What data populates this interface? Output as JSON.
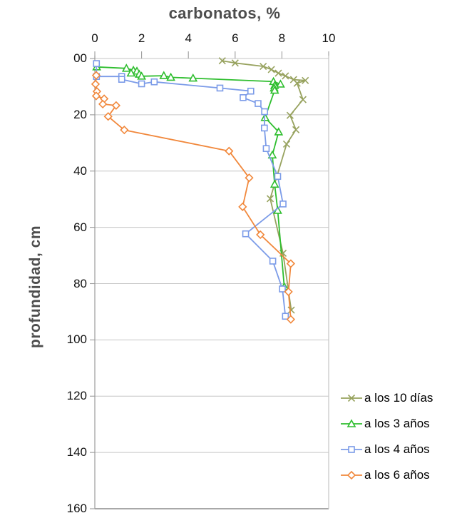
{
  "title": "carbonatos, %",
  "axes": {
    "x": {
      "tick_labels": [
        "0",
        "2",
        "4",
        "6",
        "8",
        "10"
      ],
      "tick_values": [
        0,
        2,
        4,
        6,
        8,
        10
      ]
    },
    "y": {
      "tick_labels": [
        "00",
        "20",
        "40",
        "60",
        "80",
        "100",
        "120",
        "140",
        "160"
      ],
      "tick_values": [
        0,
        20,
        40,
        60,
        80,
        100,
        120,
        140,
        160
      ]
    }
  },
  "chart_data": {
    "type": "line",
    "title": "carbonatos, %",
    "xlabel": "carbonatos, %",
    "ylabel": "profundidad, cm",
    "xlim": [
      0,
      10
    ],
    "ylim": [
      0,
      160
    ],
    "y_inverted": true,
    "grid": "horizontal",
    "legend_position": "right-bottom",
    "series": [
      {
        "name": "a los 10 días",
        "marker": "x",
        "color": "#97a25e",
        "points": [
          [
            5.45,
            0.8
          ],
          [
            6.0,
            1.6
          ],
          [
            7.2,
            2.8
          ],
          [
            7.55,
            3.9
          ],
          [
            7.85,
            5.2
          ],
          [
            8.15,
            6.2
          ],
          [
            8.5,
            7.5
          ],
          [
            9.0,
            7.8
          ],
          [
            8.65,
            8.8
          ],
          [
            8.9,
            14.6
          ],
          [
            8.35,
            20.2
          ],
          [
            8.6,
            25.3
          ],
          [
            8.2,
            30.4
          ],
          [
            7.5,
            49.8
          ],
          [
            8.05,
            69.2
          ],
          [
            8.4,
            89.4
          ]
        ]
      },
      {
        "name": "a los 3 años",
        "marker": "triangle",
        "color": "#2fbe2f",
        "points": [
          [
            0.08,
            3.0
          ],
          [
            1.35,
            3.5
          ],
          [
            1.65,
            4.2
          ],
          [
            1.8,
            4.5
          ],
          [
            1.55,
            5.2
          ],
          [
            1.9,
            5.6
          ],
          [
            2.0,
            6.3
          ],
          [
            2.95,
            6.1
          ],
          [
            3.25,
            6.7
          ],
          [
            4.2,
            7.0
          ],
          [
            7.64,
            8.2
          ],
          [
            7.94,
            9.1
          ],
          [
            7.69,
            9.6
          ],
          [
            7.67,
            10.5
          ],
          [
            7.69,
            11.3
          ],
          [
            7.28,
            21.0
          ],
          [
            7.86,
            26.1
          ],
          [
            7.59,
            34.3
          ],
          [
            7.69,
            44.7
          ],
          [
            7.82,
            54.0
          ],
          [
            8.1,
            81.1
          ]
        ]
      },
      {
        "name": "a los 4 años",
        "marker": "square",
        "color": "#7b9be8",
        "points": [
          [
            0.07,
            1.8
          ],
          [
            0.07,
            6.4
          ],
          [
            1.15,
            6.4
          ],
          [
            1.15,
            7.4
          ],
          [
            2.0,
            9.0
          ],
          [
            2.54,
            8.3
          ],
          [
            5.35,
            10.5
          ],
          [
            6.67,
            11.6
          ],
          [
            6.34,
            13.9
          ],
          [
            6.98,
            16.0
          ],
          [
            7.26,
            18.9
          ],
          [
            7.25,
            24.7
          ],
          [
            7.33,
            32.0
          ],
          [
            7.82,
            41.9
          ],
          [
            8.05,
            51.7
          ],
          [
            6.45,
            62.3
          ],
          [
            7.61,
            72.0
          ],
          [
            8.02,
            81.9
          ],
          [
            8.15,
            91.6
          ]
        ]
      },
      {
        "name": "a los 6 años",
        "marker": "diamond",
        "color": "#f1883c",
        "points": [
          [
            0.06,
            6.0
          ],
          [
            0.03,
            9.1
          ],
          [
            0.09,
            11.7
          ],
          [
            0.06,
            13.3
          ],
          [
            0.4,
            14.3
          ],
          [
            0.34,
            16.2
          ],
          [
            0.91,
            16.7
          ],
          [
            0.57,
            20.6
          ],
          [
            1.26,
            25.4
          ],
          [
            5.74,
            32.9
          ],
          [
            6.6,
            42.4
          ],
          [
            6.32,
            52.7
          ],
          [
            7.08,
            62.6
          ],
          [
            8.38,
            72.9
          ],
          [
            8.28,
            82.9
          ],
          [
            8.38,
            92.7
          ]
        ]
      }
    ]
  },
  "colors": {
    "gridline": "#c6c6c6",
    "axis": "#9b9b9b",
    "axis_bottom": "#8c8c8c",
    "title_text": "#4d4d4d",
    "tick_text": "#111111",
    "legend_text": "#000000",
    "background": "#ffffff"
  }
}
